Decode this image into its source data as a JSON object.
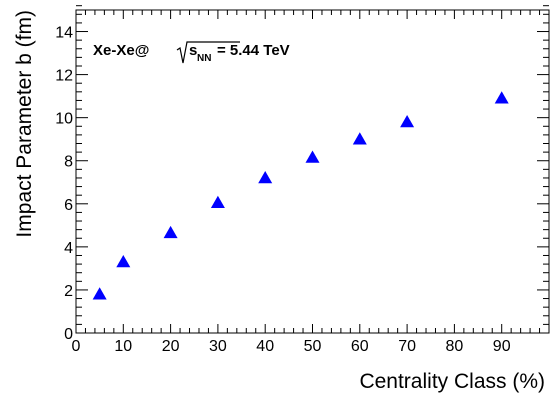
{
  "chart_data": {
    "type": "scatter",
    "title": "",
    "xlabel": "Centrality Class (%)",
    "ylabel": "Impact Parameter b (fm)",
    "xlim": [
      0,
      100
    ],
    "ylim": [
      0,
      15
    ],
    "x_ticks": [
      0,
      10,
      20,
      30,
      40,
      50,
      60,
      70,
      80,
      90
    ],
    "y_ticks": [
      0,
      2,
      4,
      6,
      8,
      10,
      12,
      14
    ],
    "grid": false,
    "marker": "triangle-up",
    "marker_color": "#0000ff",
    "annotation": {
      "system": "Xe-Xe@",
      "sqrt": "s",
      "subscript": "NN",
      "energy": " = 5.44 TeV"
    },
    "series": [
      {
        "x": [
          5,
          10,
          20,
          30,
          40,
          50,
          60,
          70,
          90
        ],
        "y": [
          1.8,
          3.3,
          4.65,
          6.05,
          7.2,
          8.15,
          9.0,
          9.8,
          10.9
        ]
      }
    ]
  }
}
